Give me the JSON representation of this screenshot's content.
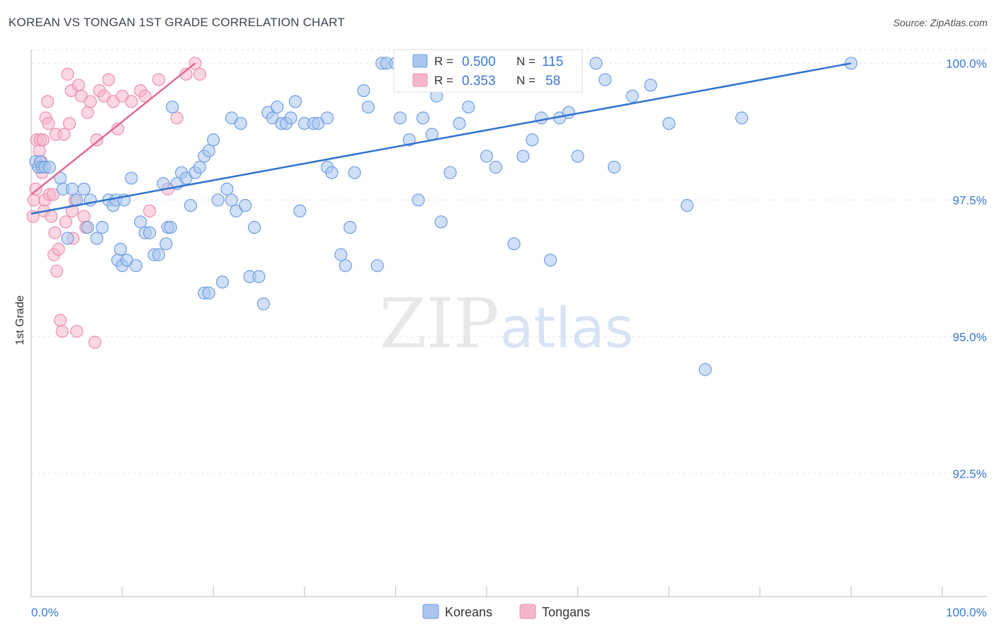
{
  "header": {
    "title": "KOREAN VS TONGAN 1ST GRADE CORRELATION CHART",
    "source": "Source: ZipAtlas.com"
  },
  "watermark": {
    "zip": "ZIP",
    "atlas": "atlas"
  },
  "legend": {
    "rows": [
      {
        "r_label": "R =",
        "r_value": "0.500",
        "n_label": "N =",
        "n_value": "115"
      },
      {
        "r_label": "R =",
        "r_value": "0.353",
        "n_label": "N =",
        "n_value": "58"
      }
    ]
  },
  "bottom_legend": {
    "koreans": "Koreans",
    "tongans": "Tongans"
  },
  "colors": {
    "korean_fill": "#aac6ee",
    "korean_stroke": "#6f9fe0",
    "korean_line": "#2f72d0",
    "tongan_fill": "#f6b7cb",
    "tongan_stroke": "#ec8fae",
    "tongan_line": "#e06a95",
    "value_text": "#3a78d4",
    "grid": "#e6e6e6"
  },
  "chart_data": {
    "type": "scatter",
    "ylabel": "1st Grade",
    "xlim": [
      0,
      100
    ],
    "ylim": [
      90.25,
      100.25
    ],
    "x_tick_labels": [
      {
        "x": 0,
        "label": "0.0%"
      },
      {
        "x": 100,
        "label": "100.0%"
      }
    ],
    "y_ticks": [
      {
        "y": 100.0,
        "label": "100.0%"
      },
      {
        "y": 97.5,
        "label": "97.5%"
      },
      {
        "y": 95.0,
        "label": "95.0%"
      },
      {
        "y": 92.5,
        "label": "92.5%"
      }
    ],
    "grid": true,
    "series": [
      {
        "name": "Koreans",
        "trend": {
          "x": [
            0,
            90
          ],
          "y": [
            97.25,
            100.0
          ]
        },
        "points": [
          [
            0.5,
            98.2
          ],
          [
            0.8,
            98.1
          ],
          [
            1.0,
            98.2
          ],
          [
            1.2,
            98.1
          ],
          [
            1.5,
            98.1
          ],
          [
            2.0,
            98.1
          ],
          [
            3.2,
            97.9
          ],
          [
            3.5,
            97.7
          ],
          [
            4.0,
            96.8
          ],
          [
            4.5,
            97.7
          ],
          [
            5.0,
            97.5
          ],
          [
            5.8,
            97.7
          ],
          [
            6.2,
            97.0
          ],
          [
            6.5,
            97.5
          ],
          [
            7.2,
            96.8
          ],
          [
            7.8,
            97.0
          ],
          [
            8.5,
            97.5
          ],
          [
            9.0,
            97.4
          ],
          [
            9.3,
            97.5
          ],
          [
            10.2,
            97.5
          ],
          [
            9.5,
            96.4
          ],
          [
            10.0,
            96.3
          ],
          [
            10.5,
            96.4
          ],
          [
            9.8,
            96.6
          ],
          [
            11.5,
            96.3
          ],
          [
            11.0,
            97.9
          ],
          [
            12.0,
            97.1
          ],
          [
            12.5,
            96.9
          ],
          [
            13.0,
            96.9
          ],
          [
            13.5,
            96.5
          ],
          [
            14.0,
            96.5
          ],
          [
            14.8,
            96.7
          ],
          [
            14.5,
            97.8
          ],
          [
            15.0,
            97.0
          ],
          [
            15.3,
            97.0
          ],
          [
            15.5,
            99.2
          ],
          [
            16.0,
            97.8
          ],
          [
            16.5,
            98.0
          ],
          [
            17.0,
            97.9
          ],
          [
            17.5,
            97.4
          ],
          [
            18.0,
            98.0
          ],
          [
            18.5,
            98.1
          ],
          [
            19.0,
            98.3
          ],
          [
            19.5,
            98.4
          ],
          [
            19.0,
            95.8
          ],
          [
            19.5,
            95.8
          ],
          [
            20.0,
            98.6
          ],
          [
            20.5,
            97.5
          ],
          [
            21.0,
            96.0
          ],
          [
            21.5,
            97.7
          ],
          [
            22.0,
            97.5
          ],
          [
            22.5,
            97.3
          ],
          [
            22.0,
            99.0
          ],
          [
            23.0,
            98.9
          ],
          [
            23.5,
            97.4
          ],
          [
            24.0,
            96.1
          ],
          [
            24.5,
            97.0
          ],
          [
            25.0,
            96.1
          ],
          [
            25.5,
            95.6
          ],
          [
            26.0,
            99.1
          ],
          [
            26.5,
            99.0
          ],
          [
            27.0,
            99.2
          ],
          [
            27.5,
            98.9
          ],
          [
            28.0,
            98.9
          ],
          [
            28.5,
            99.0
          ],
          [
            29.0,
            99.3
          ],
          [
            29.5,
            97.3
          ],
          [
            30.0,
            98.9
          ],
          [
            31.0,
            98.9
          ],
          [
            31.5,
            98.9
          ],
          [
            32.5,
            98.1
          ],
          [
            32.5,
            99.0
          ],
          [
            33.0,
            98.0
          ],
          [
            34.0,
            96.5
          ],
          [
            34.5,
            96.3
          ],
          [
            35.0,
            97.0
          ],
          [
            35.5,
            98.0
          ],
          [
            36.5,
            99.5
          ],
          [
            37.0,
            99.2
          ],
          [
            38.0,
            96.3
          ],
          [
            38.5,
            100.0
          ],
          [
            39.0,
            100.0
          ],
          [
            40.0,
            100.0
          ],
          [
            40.5,
            99.0
          ],
          [
            41.5,
            98.6
          ],
          [
            42.5,
            97.5
          ],
          [
            43.0,
            99.0
          ],
          [
            44.0,
            98.7
          ],
          [
            44.5,
            99.4
          ],
          [
            45.0,
            97.1
          ],
          [
            46.0,
            98.0
          ],
          [
            47.0,
            98.9
          ],
          [
            48.0,
            99.2
          ],
          [
            49.0,
            100.0
          ],
          [
            50.0,
            98.3
          ],
          [
            51.0,
            98.1
          ],
          [
            52.0,
            100.0
          ],
          [
            53.0,
            96.7
          ],
          [
            54.0,
            98.3
          ],
          [
            55.0,
            98.6
          ],
          [
            56.0,
            99.0
          ],
          [
            57.0,
            96.4
          ],
          [
            58.0,
            99.0
          ],
          [
            59.0,
            99.1
          ],
          [
            60.0,
            98.3
          ],
          [
            62.0,
            100.0
          ],
          [
            63.0,
            99.7
          ],
          [
            64.0,
            98.1
          ],
          [
            66.0,
            99.4
          ],
          [
            68.0,
            99.6
          ],
          [
            70.0,
            98.9
          ],
          [
            72.0,
            97.4
          ],
          [
            74.0,
            94.4
          ],
          [
            78.0,
            99.0
          ],
          [
            90.0,
            100.0
          ]
        ]
      },
      {
        "name": "Tongans",
        "trend": {
          "x": [
            0,
            18
          ],
          "y": [
            97.6,
            100.0
          ]
        },
        "points": [
          [
            0.2,
            97.2
          ],
          [
            0.3,
            97.5
          ],
          [
            0.5,
            97.7
          ],
          [
            0.6,
            98.6
          ],
          [
            0.8,
            98.1
          ],
          [
            0.9,
            98.4
          ],
          [
            1.0,
            98.6
          ],
          [
            1.1,
            98.2
          ],
          [
            1.2,
            98.0
          ],
          [
            1.3,
            98.6
          ],
          [
            1.4,
            97.3
          ],
          [
            1.5,
            97.5
          ],
          [
            1.6,
            99.0
          ],
          [
            1.8,
            99.3
          ],
          [
            1.9,
            98.9
          ],
          [
            2.0,
            97.6
          ],
          [
            2.2,
            97.2
          ],
          [
            2.4,
            97.6
          ],
          [
            2.5,
            96.5
          ],
          [
            2.6,
            96.9
          ],
          [
            2.7,
            98.7
          ],
          [
            2.8,
            96.2
          ],
          [
            3.0,
            96.6
          ],
          [
            3.2,
            95.3
          ],
          [
            3.4,
            95.1
          ],
          [
            3.6,
            98.7
          ],
          [
            3.8,
            97.1
          ],
          [
            4.0,
            99.8
          ],
          [
            4.2,
            98.9
          ],
          [
            4.4,
            99.5
          ],
          [
            4.5,
            97.3
          ],
          [
            4.6,
            96.8
          ],
          [
            4.8,
            97.5
          ],
          [
            5.0,
            95.1
          ],
          [
            5.2,
            99.6
          ],
          [
            5.5,
            99.4
          ],
          [
            5.8,
            97.2
          ],
          [
            6.0,
            97.0
          ],
          [
            6.2,
            99.1
          ],
          [
            6.5,
            99.3
          ],
          [
            7.0,
            94.9
          ],
          [
            7.2,
            98.6
          ],
          [
            7.5,
            99.5
          ],
          [
            8.0,
            99.4
          ],
          [
            8.5,
            99.7
          ],
          [
            9.0,
            99.3
          ],
          [
            9.5,
            98.8
          ],
          [
            10.0,
            99.4
          ],
          [
            11.0,
            99.3
          ],
          [
            12.0,
            99.5
          ],
          [
            12.5,
            99.4
          ],
          [
            13.0,
            97.3
          ],
          [
            14.0,
            99.7
          ],
          [
            15.0,
            97.7
          ],
          [
            16.0,
            99.0
          ],
          [
            17.0,
            99.8
          ],
          [
            18.0,
            100.0
          ],
          [
            18.5,
            99.8
          ]
        ]
      }
    ]
  }
}
